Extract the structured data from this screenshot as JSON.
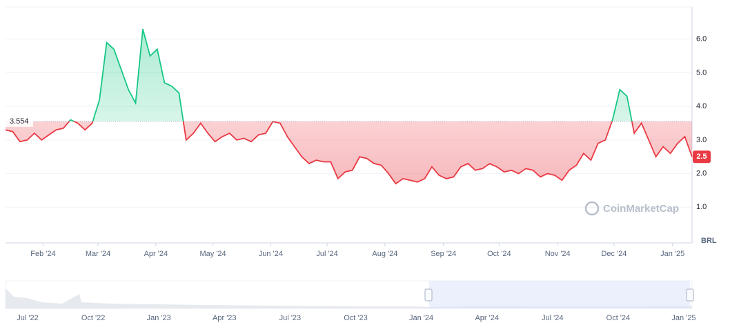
{
  "chart_data": {
    "type": "line",
    "values": [
      3.3,
      3.25,
      2.95,
      3.0,
      3.2,
      3.0,
      3.15,
      3.3,
      3.35,
      3.6,
      3.5,
      3.3,
      3.5,
      4.2,
      5.9,
      5.7,
      5.1,
      4.5,
      4.1,
      6.3,
      5.5,
      5.7,
      4.7,
      4.6,
      4.4,
      3.0,
      3.2,
      3.5,
      3.2,
      2.95,
      3.1,
      3.2,
      3.0,
      3.05,
      2.95,
      3.15,
      3.2,
      3.55,
      3.5,
      3.1,
      2.8,
      2.5,
      2.3,
      2.4,
      2.35,
      2.35,
      1.85,
      2.05,
      2.1,
      2.5,
      2.45,
      2.3,
      2.25,
      2.0,
      1.7,
      1.85,
      1.8,
      1.75,
      1.85,
      2.2,
      1.95,
      1.85,
      1.9,
      2.2,
      2.3,
      2.1,
      2.15,
      2.3,
      2.2,
      2.05,
      2.1,
      2.0,
      2.15,
      2.1,
      1.9,
      2.0,
      1.95,
      1.8,
      2.1,
      2.25,
      2.6,
      2.4,
      2.9,
      3.0,
      3.6,
      4.5,
      4.3,
      3.2,
      3.5,
      3.0,
      2.5,
      2.8,
      2.6,
      2.9,
      3.1,
      2.5
    ],
    "baseline": 3.554,
    "up_color": "#16c784",
    "down_color": "#ea3943",
    "xlim": [
      0,
      95
    ],
    "xticks": [
      {
        "value": 5.2,
        "label": "Feb '24"
      },
      {
        "value": 12.8,
        "label": "Mar '24"
      },
      {
        "value": 20.8,
        "label": "Apr '24"
      },
      {
        "value": 28.7,
        "label": "May '24"
      },
      {
        "value": 36.7,
        "label": "Jun '24"
      },
      {
        "value": 44.5,
        "label": "Jul '24"
      },
      {
        "value": 52.5,
        "label": "Aug '24"
      },
      {
        "value": 60.6,
        "label": "Sep '24"
      },
      {
        "value": 68.3,
        "label": "Oct '24"
      },
      {
        "value": 76.4,
        "label": "Nov '24"
      },
      {
        "value": 84.2,
        "label": "Dec '24"
      },
      {
        "value": 92.3,
        "label": "Jan '25"
      }
    ],
    "ylim": [
      0,
      7
    ],
    "yticks": [
      {
        "value": 1,
        "label": "1.0"
      },
      {
        "value": 2,
        "label": "2.0"
      },
      {
        "value": 3,
        "label": "3.0"
      },
      {
        "value": 4,
        "label": "4.0"
      },
      {
        "value": 5,
        "label": "5.0"
      },
      {
        "value": 6,
        "label": "6.0"
      }
    ],
    "y_label": "BRL",
    "watermark": "CoinMarketCap",
    "grid": true,
    "navigator_labels": [
      "Jul '22",
      "Oct '22",
      "Jan '23",
      "Apr '23",
      "Jul '23",
      "Oct '23",
      "Jan '24",
      "Apr '24",
      "Jul '24",
      "Oct '24",
      "Jan '25"
    ]
  }
}
